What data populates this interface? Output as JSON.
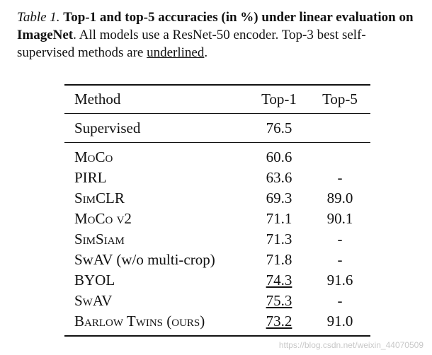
{
  "caption": {
    "label": "Table 1.",
    "bold_part": "Top-1 and top-5 accuracies (in %) under linear evaluation on ImageNet",
    "text_part1": ". All models use a ResNet-50 encoder. Top-3 best self-supervised methods are ",
    "underlined_word": "underlined",
    "text_part2": "."
  },
  "table": {
    "headers": {
      "method": "Method",
      "top1": "Top-1",
      "top5": "Top-5"
    },
    "supervised": {
      "method": "Supervised",
      "top1": "76.5",
      "top5": ""
    },
    "rows": [
      {
        "method": "MoCo",
        "top1": "60.6",
        "top5": "",
        "top1_underlined": false
      },
      {
        "method": "PIRL",
        "top1": "63.6",
        "top5": "-",
        "top1_underlined": false
      },
      {
        "method": "SimCLR",
        "top1": "69.3",
        "top5": "89.0",
        "top1_underlined": false
      },
      {
        "method": "MoCo v2",
        "top1": "71.1",
        "top5": "90.1",
        "top1_underlined": false
      },
      {
        "method": "SimSiam",
        "top1": "71.3",
        "top5": "-",
        "top1_underlined": false
      },
      {
        "method": "SwAV (w/o multi-crop)",
        "top1": "71.8",
        "top5": "-",
        "top1_underlined": false
      },
      {
        "method": "BYOL",
        "top1": "74.3",
        "top5": "91.6",
        "top1_underlined": true
      },
      {
        "method": "SwAV",
        "top1": "75.3",
        "top5": "-",
        "top1_underlined": true
      },
      {
        "method": "Barlow Twins (ours)",
        "top1": "73.2",
        "top5": "91.0",
        "top1_underlined": true
      }
    ]
  },
  "watermark": "https://blog.csdn.net/weixin_44070509"
}
